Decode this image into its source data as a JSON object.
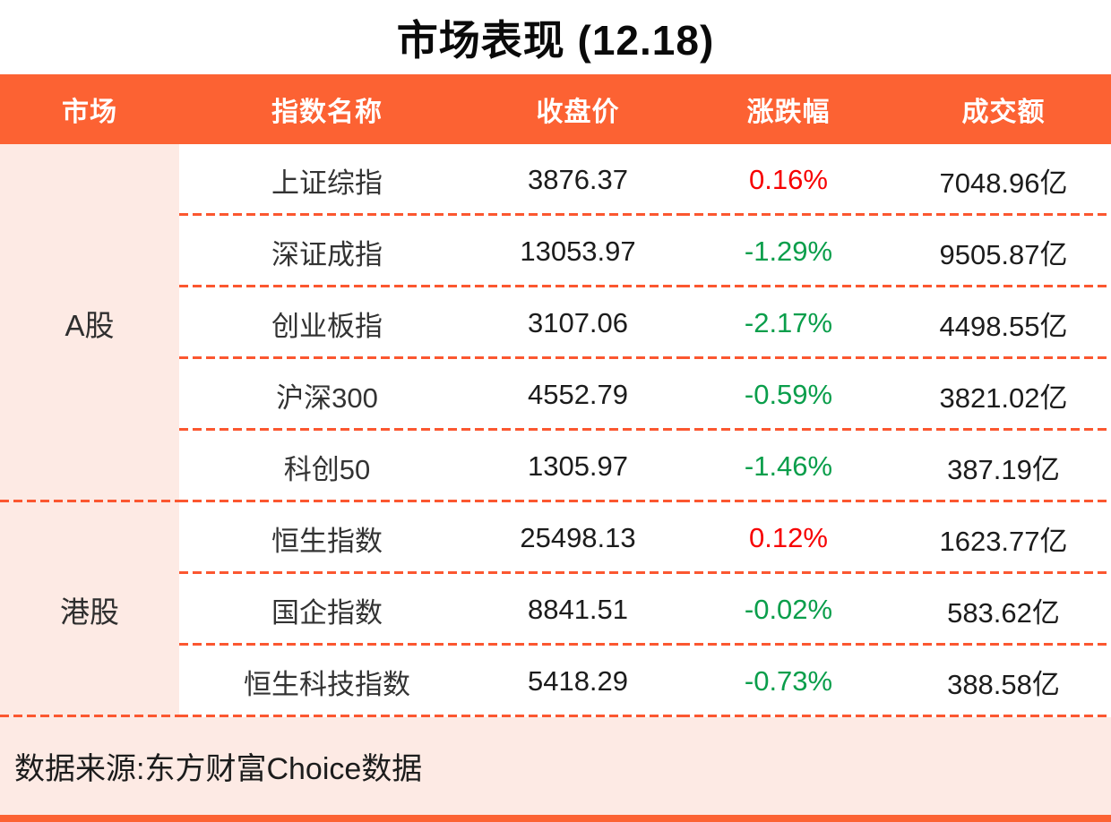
{
  "title": "市场表现 (12.18)",
  "colors": {
    "accent_orange": "#FC6233",
    "panel_pink": "#FDEAE4",
    "dash_orange": "#FB5730",
    "up_red": "#F70000",
    "down_green": "#0A9E4B"
  },
  "table": {
    "columns": [
      "市场",
      "指数名称",
      "收盘价",
      "涨跌幅",
      "成交额"
    ],
    "groups": [
      {
        "market": "A股",
        "rows": [
          {
            "name": "上证综指",
            "close": "3876.37",
            "change": "0.16%",
            "turnover": "7048.96亿"
          },
          {
            "name": "深证成指",
            "close": "13053.97",
            "change": "-1.29%",
            "turnover": "9505.87亿"
          },
          {
            "name": "创业板指",
            "close": "3107.06",
            "change": "-2.17%",
            "turnover": "4498.55亿"
          },
          {
            "name": "沪深300",
            "close": "4552.79",
            "change": "-0.59%",
            "turnover": "3821.02亿"
          },
          {
            "name": "科创50",
            "close": "1305.97",
            "change": "-1.46%",
            "turnover": "387.19亿"
          }
        ]
      },
      {
        "market": "港股",
        "rows": [
          {
            "name": "恒生指数",
            "close": "25498.13",
            "change": "0.12%",
            "turnover": "1623.77亿"
          },
          {
            "name": "国企指数",
            "close": "8841.51",
            "change": "-0.02%",
            "turnover": "583.62亿"
          },
          {
            "name": "恒生科技指数",
            "close": "5418.29",
            "change": "-0.73%",
            "turnover": "388.58亿"
          }
        ]
      }
    ]
  },
  "footer": {
    "source": "数据来源:东方财富Choice数据"
  },
  "chart_data": {
    "type": "table",
    "title": "市场表现 (12.18)",
    "columns": [
      "市场",
      "指数名称",
      "收盘价",
      "涨跌幅",
      "成交额"
    ],
    "rows": [
      [
        "A股",
        "上证综指",
        3876.37,
        "0.16%",
        "7048.96亿"
      ],
      [
        "A股",
        "深证成指",
        13053.97,
        "-1.29%",
        "9505.87亿"
      ],
      [
        "A股",
        "创业板指",
        3107.06,
        "-2.17%",
        "4498.55亿"
      ],
      [
        "A股",
        "沪深300",
        4552.79,
        "-0.59%",
        "3821.02亿"
      ],
      [
        "A股",
        "科创50",
        1305.97,
        "-1.46%",
        "387.19亿"
      ],
      [
        "港股",
        "恒生指数",
        25498.13,
        "0.12%",
        "1623.77亿"
      ],
      [
        "港股",
        "国企指数",
        8841.51,
        "-0.02%",
        "583.62亿"
      ],
      [
        "港股",
        "恒生科技指数",
        5418.29,
        "-0.73%",
        "388.58亿"
      ]
    ],
    "notes": "positive change shown red, negative shown green; source line at bottom"
  }
}
